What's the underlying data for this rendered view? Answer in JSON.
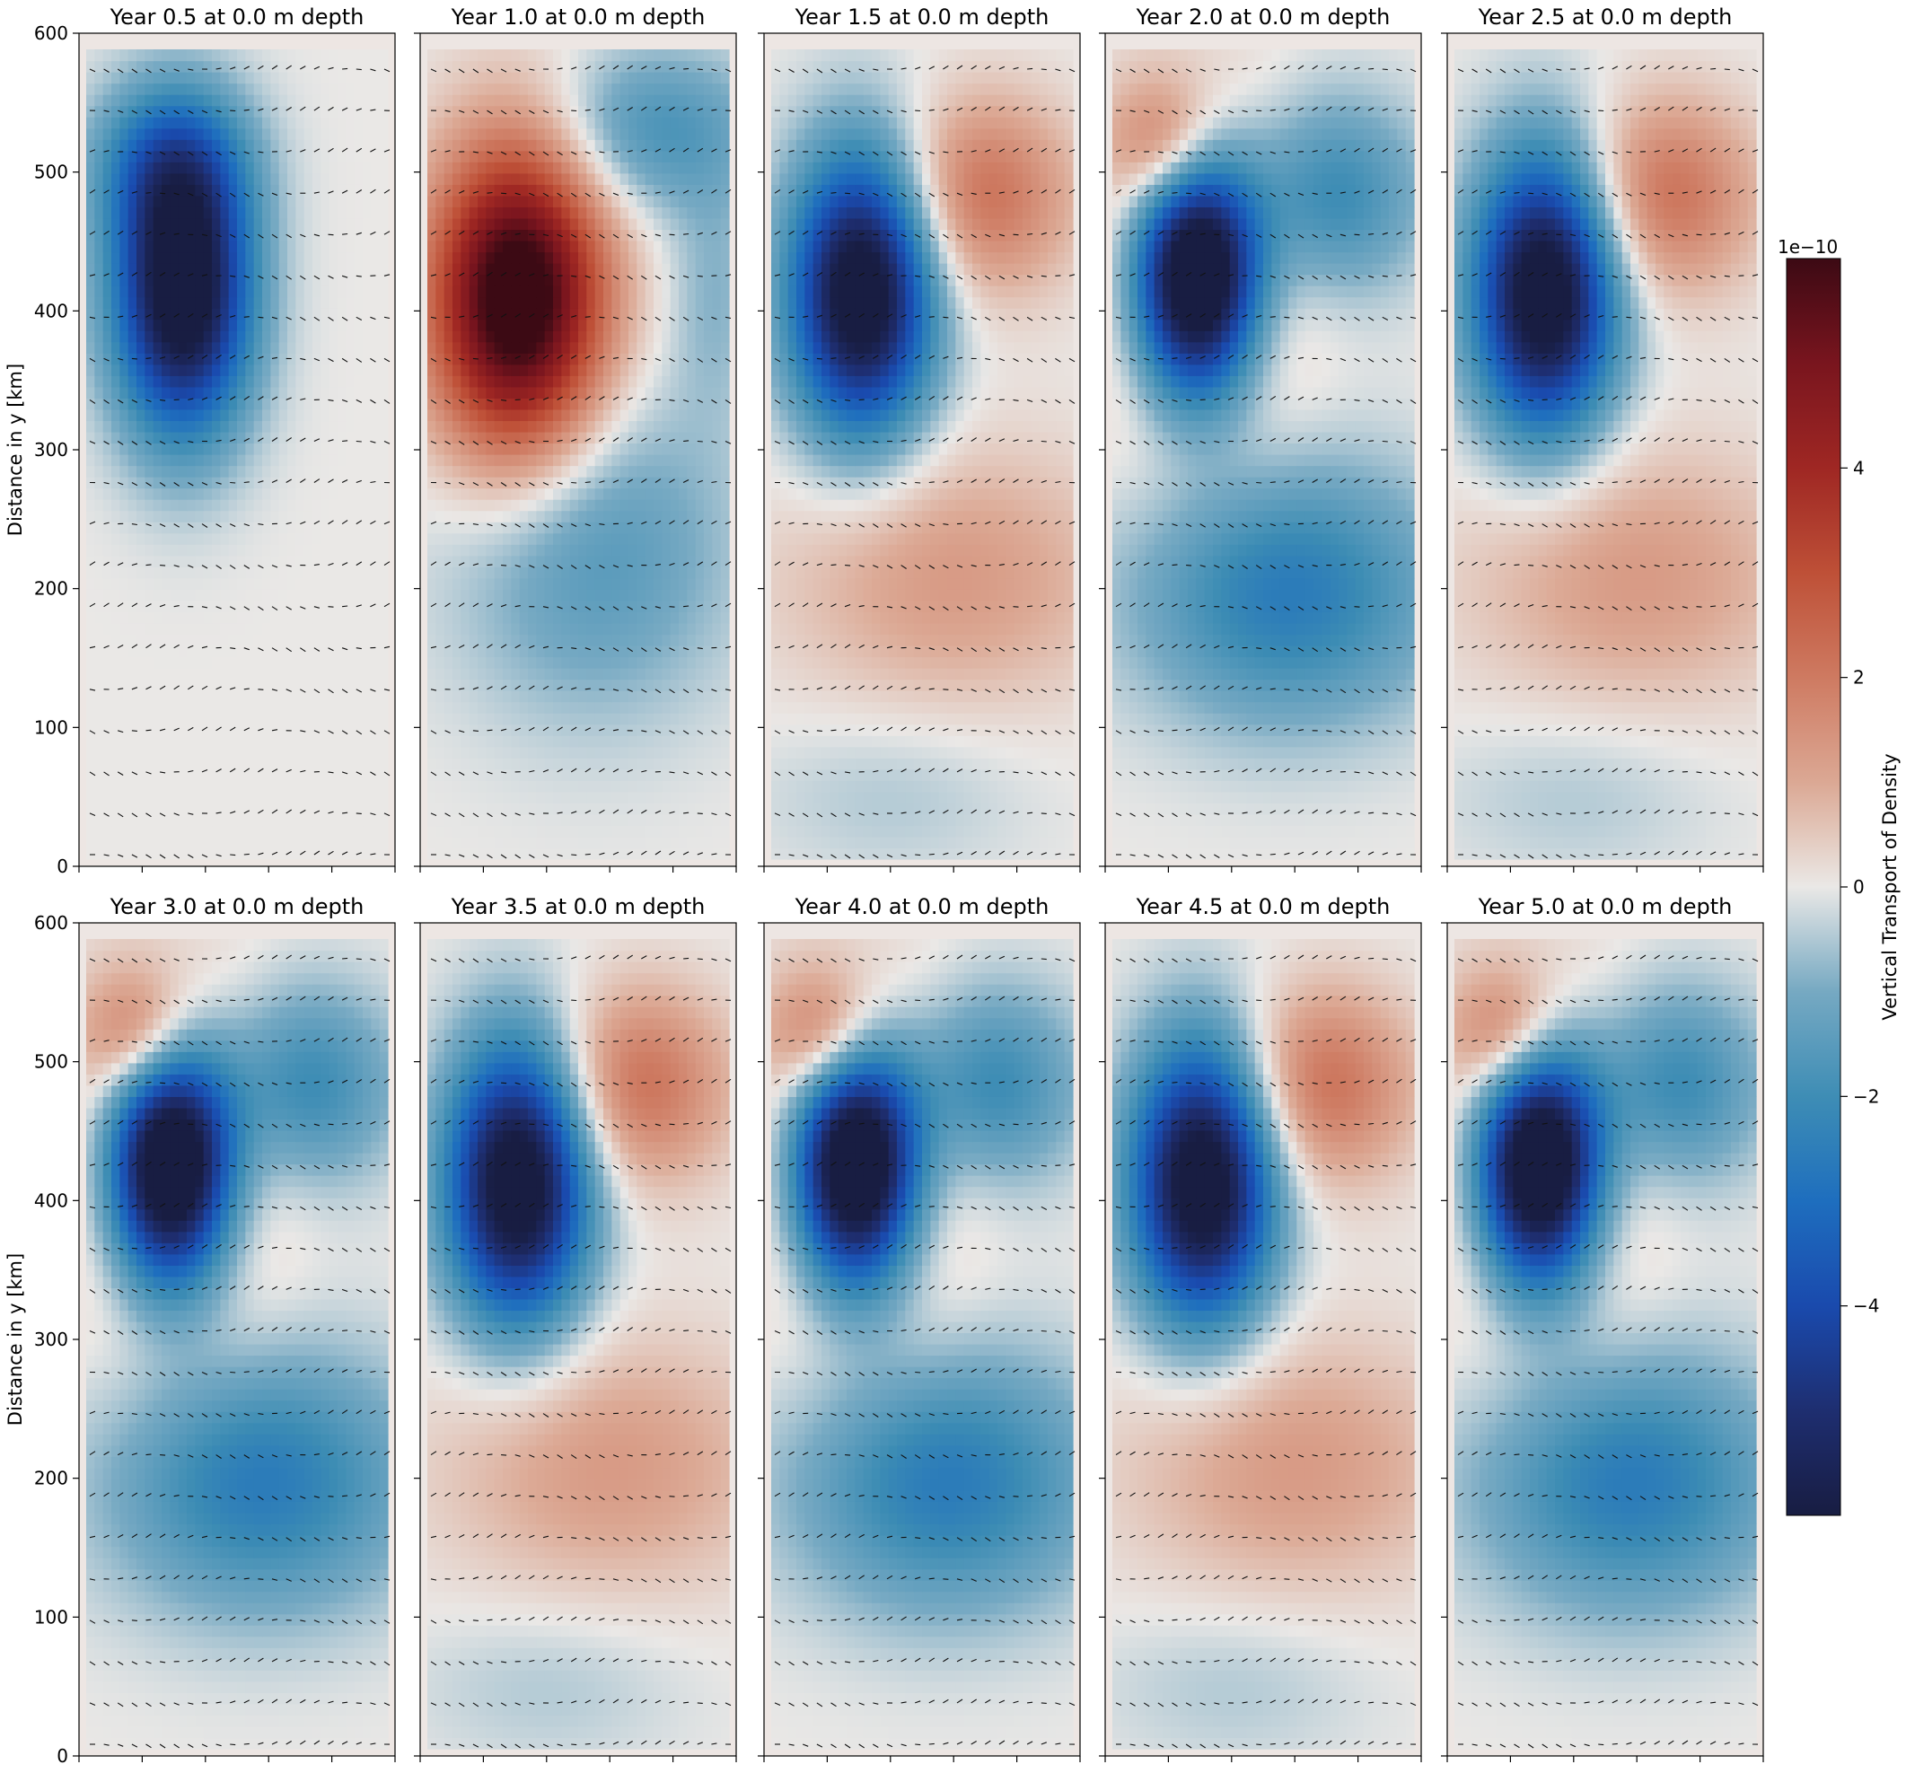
{
  "chart_data": {
    "type": "heatmap",
    "colorbar": {
      "label": "Vertical Transport of Density",
      "offset_label": "1e−10",
      "ticks": [
        -4,
        -2,
        0,
        2,
        4
      ],
      "tick_labels": [
        "−4",
        "−2",
        "0",
        "2",
        "4"
      ],
      "range": [
        -6,
        6
      ],
      "colormap": "balance",
      "placement": "right"
    },
    "y_axis": {
      "label": "Distance in y [km]",
      "range": [
        0,
        600
      ],
      "ticks": [
        0,
        100,
        200,
        300,
        400,
        500,
        600
      ],
      "tick_labels": [
        "0",
        "100",
        "200",
        "300",
        "400",
        "500",
        "600"
      ]
    },
    "x_axis": {
      "ticks": 6,
      "tick_labels": []
    },
    "grid": false,
    "panels": [
      {
        "title": "Year 0.5 at 0.0 m depth",
        "pattern": 0
      },
      {
        "title": "Year 1.0 at 0.0 m depth",
        "pattern": 1
      },
      {
        "title": "Year 1.5 at 0.0 m depth",
        "pattern": 2
      },
      {
        "title": "Year 2.0 at 0.0 m depth",
        "pattern": 3
      },
      {
        "title": "Year 2.5 at 0.0 m depth",
        "pattern": 2
      },
      {
        "title": "Year 3.0 at 0.0 m depth",
        "pattern": 3
      },
      {
        "title": "Year 3.5 at 0.0 m depth",
        "pattern": 2
      },
      {
        "title": "Year 4.0 at 0.0 m depth",
        "pattern": 3
      },
      {
        "title": "Year 4.5 at 0.0 m depth",
        "pattern": 2
      },
      {
        "title": "Year 5.0 at 0.0 m depth",
        "pattern": 3
      }
    ]
  }
}
